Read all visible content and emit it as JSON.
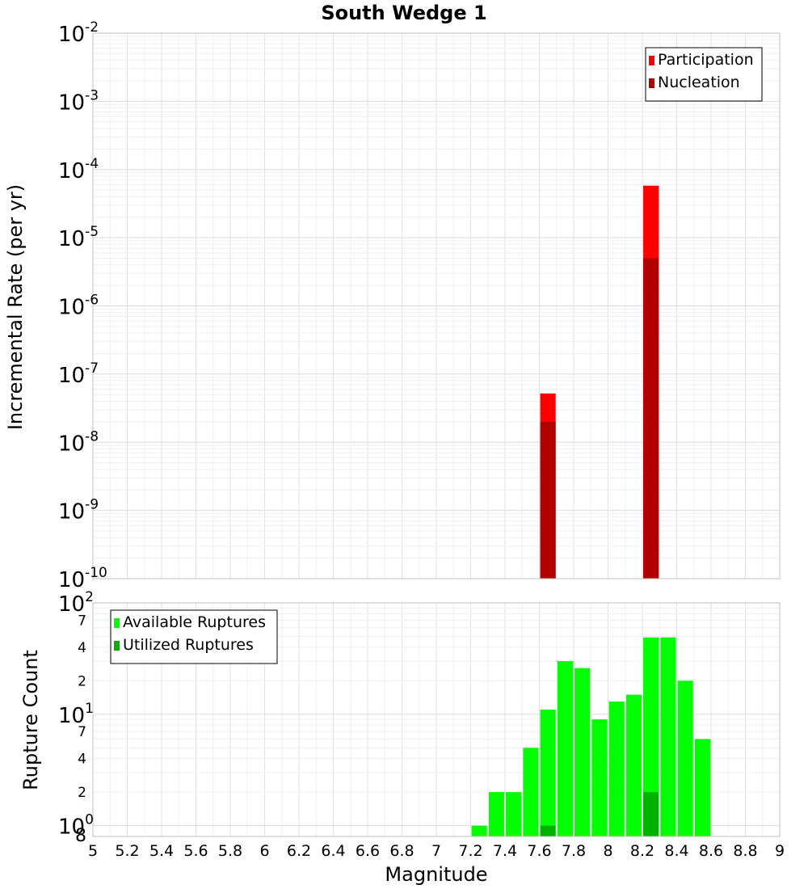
{
  "chart_data": [
    {
      "type": "bar",
      "title": "South Wedge 1",
      "xlabel": "Magnitude",
      "ylabel": "Incremental Rate (per yr)",
      "y_scale": "log",
      "ylim": [
        1e-10,
        0.01
      ],
      "xlim": [
        5,
        9
      ],
      "y_ticks": [
        {
          "base": "10",
          "exp": "-10"
        },
        {
          "base": "10",
          "exp": "-9"
        },
        {
          "base": "10",
          "exp": "-8"
        },
        {
          "base": "10",
          "exp": "-7"
        },
        {
          "base": "10",
          "exp": "-6"
        },
        {
          "base": "10",
          "exp": "-5"
        },
        {
          "base": "10",
          "exp": "-4"
        },
        {
          "base": "10",
          "exp": "-3"
        },
        {
          "base": "10",
          "exp": "-2"
        }
      ],
      "legend_position": "top-right",
      "grid": true,
      "series": [
        {
          "name": "Participation",
          "color": "#ff0000",
          "x": [
            7.65,
            8.25
          ],
          "values": [
            5.2e-08,
            5.8e-05
          ]
        },
        {
          "name": "Nucleation",
          "color": "#b20000",
          "x": [
            7.65,
            8.25
          ],
          "values": [
            2e-08,
            5e-06
          ]
        }
      ]
    },
    {
      "type": "bar",
      "xlabel": "Magnitude",
      "ylabel": "Rupture Count",
      "y_scale": "log",
      "ylim": [
        0.8,
        100
      ],
      "xlim": [
        5,
        9
      ],
      "y_major_ticks": [
        {
          "base": "10",
          "exp": "0"
        },
        {
          "base": "10",
          "exp": "1"
        },
        {
          "base": "10",
          "exp": "2"
        }
      ],
      "y_minor_ticks": [
        "8",
        "2",
        "4",
        "7",
        "2",
        "4",
        "7"
      ],
      "x_ticks": [
        "5",
        "5.2",
        "5.4",
        "5.6",
        "5.8",
        "6",
        "6.2",
        "6.4",
        "6.6",
        "6.8",
        "7",
        "7.2",
        "7.4",
        "7.6",
        "7.8",
        "8",
        "8.2",
        "8.4",
        "8.6",
        "8.8",
        "9"
      ],
      "legend_position": "top-left",
      "grid": true,
      "series": [
        {
          "name": "Available Ruptures",
          "color": "#00ff00",
          "x": [
            7.25,
            7.35,
            7.45,
            7.55,
            7.65,
            7.75,
            7.85,
            7.95,
            8.05,
            8.15,
            8.25,
            8.35,
            8.45,
            8.55
          ],
          "values": [
            1,
            2,
            2,
            5,
            11,
            30,
            26,
            9,
            13,
            15,
            49,
            49,
            20,
            6
          ]
        },
        {
          "name": "Utilized Ruptures",
          "color": "#00b200",
          "x": [
            7.65,
            8.25
          ],
          "values": [
            1,
            2
          ]
        }
      ]
    }
  ]
}
